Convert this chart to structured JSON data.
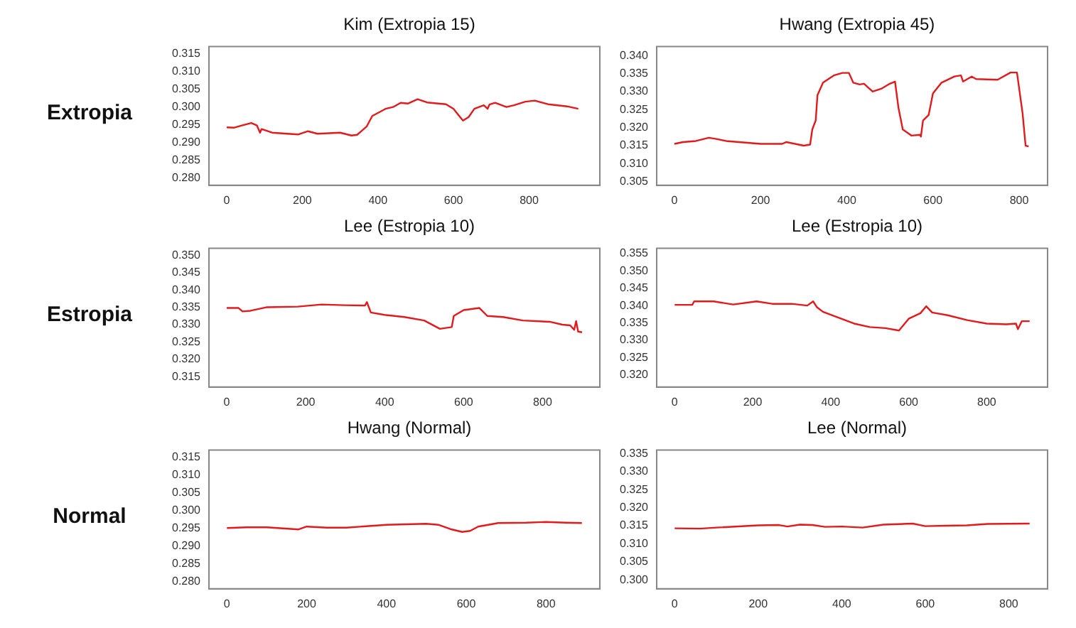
{
  "chart_data": [
    {
      "type": "line",
      "title": "Kim (Extropia 15)",
      "ylabel": "Extropia",
      "legend": false,
      "grid": false,
      "marker": "none",
      "line_style": "solid",
      "xlim": [
        -47,
        987
      ],
      "xticks": [
        0,
        200,
        400,
        600,
        800
      ],
      "ylim": [
        0.278,
        0.317
      ],
      "yticks": [
        {
          "value": 0.28,
          "label": "0.280"
        },
        0.285,
        {
          "value": 0.29,
          "label": "0.290"
        },
        0.295,
        {
          "value": 0.3,
          "label": "0.300"
        },
        0.305,
        {
          "value": 0.31,
          "label": "0.310"
        },
        0.315
      ],
      "series": [
        {
          "color": "#e31a1c",
          "x": [
            0,
            20,
            40,
            65,
            80,
            88,
            92,
            120,
            160,
            190,
            215,
            240,
            300,
            330,
            345,
            370,
            385,
            420,
            440,
            460,
            480,
            505,
            530,
            580,
            600,
            615,
            625,
            640,
            655,
            680,
            690,
            695,
            710,
            740,
            760,
            790,
            815,
            850,
            900,
            930
          ],
          "values": [
            0.2943,
            0.2942,
            0.2948,
            0.2955,
            0.2948,
            0.2928,
            0.2938,
            0.2928,
            0.2925,
            0.2923,
            0.2932,
            0.2925,
            0.2928,
            0.292,
            0.2922,
            0.2945,
            0.2975,
            0.2995,
            0.3,
            0.3012,
            0.301,
            0.3022,
            0.3013,
            0.3008,
            0.2995,
            0.2975,
            0.2962,
            0.2972,
            0.2995,
            0.3005,
            0.2995,
            0.3007,
            0.3012,
            0.3,
            0.3005,
            0.3015,
            0.3018,
            0.3008,
            0.3002,
            0.2995
          ]
        }
      ]
    },
    {
      "type": "line",
      "title": "Hwang (Extropia 45)",
      "legend": false,
      "grid": false,
      "marker": "none",
      "line_style": "solid",
      "xlim": [
        -41,
        866
      ],
      "xticks": [
        0,
        200,
        400,
        600,
        800
      ],
      "ylim": [
        0.304,
        0.3425
      ],
      "yticks": [
        0.305,
        {
          "value": 0.31,
          "label": "0.310"
        },
        0.315,
        {
          "value": 0.32,
          "label": "0.320"
        },
        0.325,
        {
          "value": 0.33,
          "label": "0.330"
        },
        0.335,
        {
          "value": 0.34,
          "label": "0.340"
        }
      ],
      "series": [
        {
          "color": "#e31a1c",
          "x": [
            0,
            20,
            50,
            80,
            100,
            120,
            150,
            200,
            250,
            260,
            300,
            315,
            320,
            328,
            332,
            345,
            370,
            390,
            405,
            415,
            430,
            440,
            460,
            480,
            500,
            512,
            520,
            530,
            550,
            570,
            572,
            577,
            590,
            600,
            620,
            650,
            665,
            670,
            690,
            700,
            750,
            780,
            795,
            808,
            815,
            822
          ],
          "values": [
            0.3155,
            0.316,
            0.3163,
            0.3172,
            0.3168,
            0.3163,
            0.316,
            0.3155,
            0.3155,
            0.316,
            0.315,
            0.3153,
            0.3195,
            0.322,
            0.329,
            0.3325,
            0.3345,
            0.3352,
            0.3352,
            0.3325,
            0.332,
            0.3322,
            0.33,
            0.3308,
            0.3322,
            0.3328,
            0.3255,
            0.3195,
            0.3178,
            0.318,
            0.3175,
            0.322,
            0.3235,
            0.3295,
            0.3325,
            0.3342,
            0.3345,
            0.3328,
            0.3342,
            0.3335,
            0.3333,
            0.3353,
            0.3353,
            0.324,
            0.315,
            0.3148
          ]
        }
      ]
    },
    {
      "type": "line",
      "title": "Lee (Estropia 10)",
      "ylabel": "Estropia",
      "legend": false,
      "grid": false,
      "marker": "none",
      "line_style": "solid",
      "xlim": [
        -45,
        945
      ],
      "xticks": [
        0,
        200,
        400,
        600,
        800
      ],
      "ylim": [
        0.312,
        0.352
      ],
      "yticks": [
        0.315,
        {
          "value": 0.32,
          "label": "0.320"
        },
        0.325,
        {
          "value": 0.33,
          "label": "0.330"
        },
        0.335,
        {
          "value": 0.34,
          "label": "0.340"
        },
        0.345,
        {
          "value": 0.35,
          "label": "0.350"
        }
      ],
      "series": [
        {
          "color": "#e31a1c",
          "x": [
            0,
            30,
            40,
            60,
            100,
            180,
            240,
            300,
            350,
            355,
            365,
            400,
            450,
            500,
            540,
            570,
            575,
            600,
            640,
            660,
            700,
            750,
            820,
            850,
            870,
            880,
            885,
            890,
            900
          ],
          "values": [
            0.3348,
            0.3348,
            0.3338,
            0.334,
            0.335,
            0.3352,
            0.3358,
            0.3356,
            0.3355,
            0.3365,
            0.3335,
            0.3328,
            0.3322,
            0.3312,
            0.3288,
            0.3293,
            0.3325,
            0.3342,
            0.3348,
            0.3325,
            0.3322,
            0.3312,
            0.3308,
            0.33,
            0.3298,
            0.3285,
            0.331,
            0.328,
            0.3278
          ]
        }
      ]
    },
    {
      "type": "line",
      "title": "Lee (Estropia 10)",
      "legend": false,
      "grid": false,
      "marker": "none",
      "line_style": "solid",
      "xlim": [
        -46,
        956
      ],
      "xticks": [
        0,
        200,
        400,
        600,
        800
      ],
      "ylim": [
        0.3165,
        0.3565
      ],
      "yticks": [
        {
          "value": 0.32,
          "label": "0.320"
        },
        0.325,
        {
          "value": 0.33,
          "label": "0.330"
        },
        0.335,
        {
          "value": 0.34,
          "label": "0.340"
        },
        0.345,
        {
          "value": 0.35,
          "label": "0.350"
        },
        0.355
      ],
      "series": [
        {
          "color": "#e31a1c",
          "x": [
            0,
            45,
            50,
            100,
            150,
            210,
            250,
            300,
            340,
            355,
            365,
            380,
            420,
            460,
            500,
            540,
            575,
            600,
            630,
            645,
            660,
            700,
            750,
            800,
            850,
            875,
            880,
            890,
            910
          ],
          "values": [
            0.3402,
            0.3402,
            0.3412,
            0.3412,
            0.3403,
            0.3412,
            0.3405,
            0.3405,
            0.34,
            0.3412,
            0.3395,
            0.3382,
            0.3365,
            0.3348,
            0.3338,
            0.3335,
            0.3328,
            0.3362,
            0.3378,
            0.3398,
            0.338,
            0.3372,
            0.3358,
            0.3348,
            0.3346,
            0.3348,
            0.3332,
            0.3355,
            0.3355
          ]
        }
      ]
    },
    {
      "type": "line",
      "title": "Hwang (Normal)",
      "ylabel": "Normal",
      "legend": false,
      "grid": false,
      "marker": "none",
      "line_style": "solid",
      "xlim": [
        -45,
        935
      ],
      "xticks": [
        0,
        200,
        400,
        600,
        800
      ],
      "ylim": [
        0.278,
        0.317
      ],
      "yticks": [
        {
          "value": 0.28,
          "label": "0.280"
        },
        0.285,
        {
          "value": 0.29,
          "label": "0.290"
        },
        0.295,
        {
          "value": 0.3,
          "label": "0.300"
        },
        0.305,
        {
          "value": 0.31,
          "label": "0.310"
        },
        0.315
      ],
      "series": [
        {
          "color": "#e31a1c",
          "x": [
            0,
            50,
            100,
            180,
            200,
            250,
            300,
            400,
            500,
            530,
            560,
            590,
            610,
            630,
            680,
            750,
            800,
            850,
            890
          ],
          "values": [
            0.2951,
            0.2953,
            0.2953,
            0.2947,
            0.2955,
            0.2952,
            0.2952,
            0.296,
            0.2963,
            0.296,
            0.2948,
            0.294,
            0.2943,
            0.2955,
            0.2965,
            0.2966,
            0.2968,
            0.2966,
            0.2965
          ]
        }
      ]
    },
    {
      "type": "line",
      "title": "Lee (Normal)",
      "legend": false,
      "grid": false,
      "marker": "none",
      "line_style": "solid",
      "xlim": [
        -43,
        893
      ],
      "xticks": [
        0,
        200,
        400,
        600,
        800
      ],
      "ylim": [
        0.2975,
        0.336
      ],
      "yticks": [
        {
          "value": 0.3,
          "label": "0.300"
        },
        0.305,
        {
          "value": 0.31,
          "label": "0.310"
        },
        0.315,
        {
          "value": 0.32,
          "label": "0.320"
        },
        0.325,
        {
          "value": 0.33,
          "label": "0.330"
        },
        0.335
      ],
      "series": [
        {
          "color": "#e31a1c",
          "x": [
            0,
            60,
            100,
            200,
            250,
            270,
            300,
            330,
            360,
            400,
            450,
            500,
            570,
            600,
            650,
            700,
            750,
            850
          ],
          "values": [
            0.3143,
            0.3142,
            0.3145,
            0.3151,
            0.3152,
            0.3148,
            0.3153,
            0.3152,
            0.3147,
            0.3148,
            0.3145,
            0.3153,
            0.3156,
            0.3149,
            0.315,
            0.3151,
            0.3155,
            0.3156
          ]
        }
      ]
    }
  ]
}
